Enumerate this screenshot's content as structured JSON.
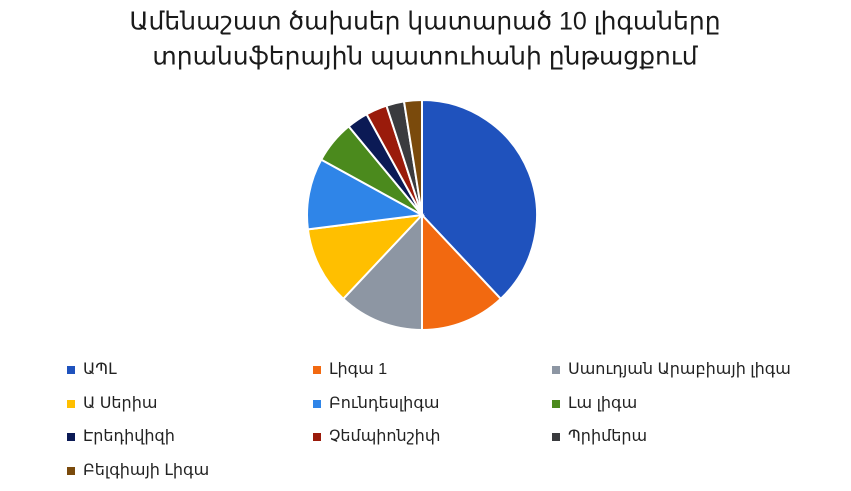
{
  "chart_data": {
    "type": "pie",
    "title": [
      "Ամենաշատ ծախսեր կատարած 10 լիգաները",
      "տրանսֆերային պատուհանի ընթացքում"
    ],
    "series": [
      {
        "name": "ԱՊԼ",
        "color": "#1f52bd",
        "value": 38
      },
      {
        "name": "Լիգա 1",
        "color": "#f26910",
        "value": 12
      },
      {
        "name": "Սաուդյան Արաբիայի լիգա",
        "color": "#8d96a3",
        "value": 12
      },
      {
        "name": "Ա Սերիա",
        "color": "#ffbf00",
        "value": 11
      },
      {
        "name": "Բունդեսլիգա",
        "color": "#2f85e8",
        "value": 10
      },
      {
        "name": "Լա լիգա",
        "color": "#4b8a1d",
        "value": 6
      },
      {
        "name": "Էրեդիվիզի",
        "color": "#0b1a55",
        "value": 3
      },
      {
        "name": "Չեմպիոնշիփ",
        "color": "#9a1b0b",
        "value": 3
      },
      {
        "name": "Պրիմերա",
        "color": "#3a3b3e",
        "value": 2.5
      },
      {
        "name": "Բելգիայի Լիգա",
        "color": "#7a4a0c",
        "value": 2.5
      }
    ],
    "legend": "bottom"
  }
}
